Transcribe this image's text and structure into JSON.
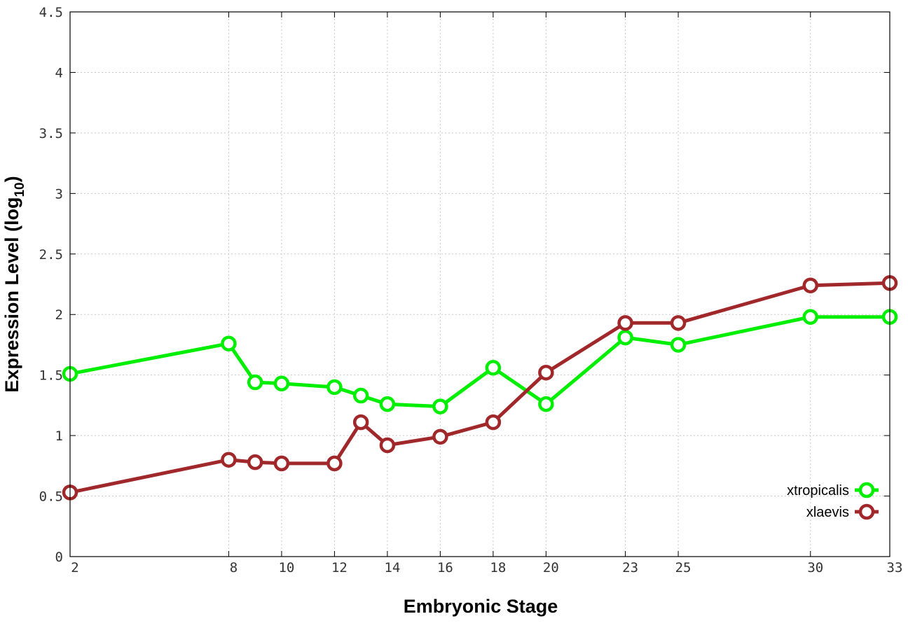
{
  "chart_data": {
    "type": "line",
    "xlabel": "Embryonic Stage",
    "ylabel_main": "Expression Level (log",
    "ylabel_sub": "10",
    "ylabel_close": ")",
    "xlim": [
      2,
      33
    ],
    "ylim": [
      0,
      4.5
    ],
    "x_ticks": [
      2,
      8,
      10,
      12,
      14,
      16,
      18,
      20,
      23,
      25,
      30,
      33
    ],
    "y_ticks": [
      0,
      0.5,
      1,
      1.5,
      2,
      2.5,
      3,
      3.5,
      4,
      4.5
    ],
    "y_tick_labels": [
      "0",
      "0.5",
      "1",
      "1.5",
      "2",
      "2.5",
      "3",
      "3.5",
      "4",
      "4.5"
    ],
    "grid": true,
    "legend_position": "bottom-right",
    "series": [
      {
        "name": "xtropicalis",
        "color": "#00ee00",
        "x": [
          2,
          8,
          9,
          10,
          12,
          13,
          14,
          16,
          18,
          20,
          23,
          25,
          30,
          33
        ],
        "y": [
          1.51,
          1.76,
          1.44,
          1.43,
          1.4,
          1.33,
          1.26,
          1.24,
          1.56,
          1.26,
          1.81,
          1.75,
          1.98,
          1.98
        ]
      },
      {
        "name": "xlaevis",
        "color": "#a0282a",
        "x": [
          2,
          8,
          9,
          10,
          12,
          13,
          14,
          16,
          18,
          20,
          23,
          25,
          30,
          33
        ],
        "y": [
          0.53,
          0.8,
          0.78,
          0.77,
          0.77,
          1.11,
          0.92,
          0.99,
          1.11,
          1.52,
          1.93,
          1.93,
          2.24,
          2.26
        ]
      }
    ]
  }
}
